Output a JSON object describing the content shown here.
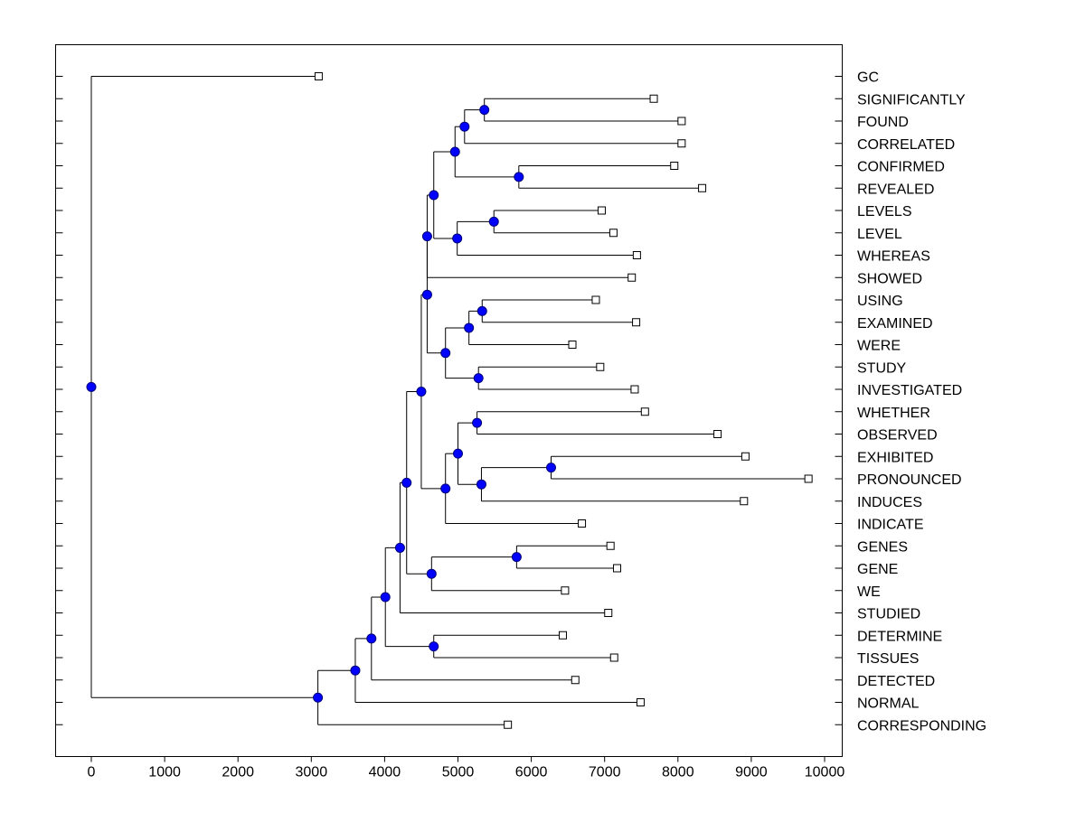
{
  "chart_data": {
    "type": "dendrogram",
    "title": "",
    "xlabel": "",
    "ylabel": "",
    "xlim": [
      -500,
      10200
    ],
    "xticks": [
      0,
      1000,
      2000,
      3000,
      4000,
      5000,
      6000,
      7000,
      8000,
      9000,
      10000
    ],
    "xtick_labels": [
      "0",
      "1000",
      "2000",
      "3000",
      "4000",
      "5000",
      "6000",
      "7000",
      "8000",
      "9000",
      "10000"
    ],
    "leaves": [
      {
        "label": "GC",
        "value": 3100
      },
      {
        "label": "SIGNIFICANTLY",
        "value": 7670
      },
      {
        "label": "FOUND",
        "value": 8050
      },
      {
        "label": "CORRELATED",
        "value": 8050
      },
      {
        "label": "CONFIRMED",
        "value": 7950
      },
      {
        "label": "REVEALED",
        "value": 8330
      },
      {
        "label": "LEVELS",
        "value": 6960
      },
      {
        "label": "LEVEL",
        "value": 7120
      },
      {
        "label": "WHEREAS",
        "value": 7440
      },
      {
        "label": "SHOWED",
        "value": 7370
      },
      {
        "label": "USING",
        "value": 6880
      },
      {
        "label": "EXAMINED",
        "value": 7430
      },
      {
        "label": "WERE",
        "value": 6560
      },
      {
        "label": "STUDY",
        "value": 6940
      },
      {
        "label": "INVESTIGATED",
        "value": 7410
      },
      {
        "label": "WHETHER",
        "value": 7550
      },
      {
        "label": "OBSERVED",
        "value": 8540
      },
      {
        "label": "EXHIBITED",
        "value": 8920
      },
      {
        "label": "PRONOUNCED",
        "value": 9780
      },
      {
        "label": "INDUCES",
        "value": 8900
      },
      {
        "label": "INDICATE",
        "value": 6690
      },
      {
        "label": "GENES",
        "value": 7080
      },
      {
        "label": "GENE",
        "value": 7170
      },
      {
        "label": "WE",
        "value": 6460
      },
      {
        "label": "STUDIED",
        "value": 7050
      },
      {
        "label": "DETERMINE",
        "value": 6430
      },
      {
        "label": "TISSUES",
        "value": 7130
      },
      {
        "label": "DETECTED",
        "value": 6600
      },
      {
        "label": "NORMAL",
        "value": 7490
      },
      {
        "label": "CORRESPONDING",
        "value": 5680
      }
    ],
    "nodes": [
      {
        "id": "A1",
        "value": 5360,
        "children": [
          "L:SIGNIFICANTLY",
          "L:FOUND"
        ]
      },
      {
        "id": "A2",
        "value": 5090,
        "children": [
          "N:A1",
          "L:CORRELATED"
        ]
      },
      {
        "id": "A3",
        "value": 5830,
        "children": [
          "L:CONFIRMED",
          "L:REVEALED"
        ]
      },
      {
        "id": "A4",
        "value": 4960,
        "children": [
          "N:A2",
          "N:A3"
        ]
      },
      {
        "id": "B1",
        "value": 5490,
        "children": [
          "L:LEVELS",
          "L:LEVEL"
        ]
      },
      {
        "id": "B2",
        "value": 4990,
        "children": [
          "N:B1",
          "L:WHEREAS"
        ]
      },
      {
        "id": "C",
        "value": 4670,
        "children": [
          "N:A4",
          "N:B2"
        ]
      },
      {
        "id": "D",
        "value": 4580,
        "children": [
          "N:C",
          "L:SHOWED"
        ]
      },
      {
        "id": "E1",
        "value": 5330,
        "children": [
          "L:USING",
          "L:EXAMINED"
        ]
      },
      {
        "id": "E2",
        "value": 5150,
        "children": [
          "N:E1",
          "L:WERE"
        ]
      },
      {
        "id": "E3",
        "value": 5280,
        "children": [
          "L:STUDY",
          "L:INVESTIGATED"
        ]
      },
      {
        "id": "E4",
        "value": 4830,
        "children": [
          "N:E2",
          "N:E3"
        ]
      },
      {
        "id": "F",
        "value": 4580,
        "children": [
          "N:D",
          "N:E4"
        ]
      },
      {
        "id": "G1",
        "value": 5260,
        "children": [
          "L:WHETHER",
          "L:OBSERVED"
        ]
      },
      {
        "id": "G2",
        "value": 6270,
        "children": [
          "L:EXHIBITED",
          "L:PRONOUNCED"
        ]
      },
      {
        "id": "G3",
        "value": 5320,
        "children": [
          "N:G2",
          "L:INDUCES"
        ]
      },
      {
        "id": "G4",
        "value": 5000,
        "children": [
          "N:G1",
          "N:G3"
        ]
      },
      {
        "id": "G5",
        "value": 4830,
        "children": [
          "N:G4",
          "L:INDICATE"
        ]
      },
      {
        "id": "H",
        "value": 4500,
        "children": [
          "N:F",
          "N:G5"
        ]
      },
      {
        "id": "I1",
        "value": 5800,
        "children": [
          "L:GENES",
          "L:GENE"
        ]
      },
      {
        "id": "I2",
        "value": 4640,
        "children": [
          "N:I1",
          "L:WE"
        ]
      },
      {
        "id": "J",
        "value": 4300,
        "children": [
          "N:H",
          "N:I2"
        ]
      },
      {
        "id": "K",
        "value": 4210,
        "children": [
          "N:J",
          "L:STUDIED"
        ]
      },
      {
        "id": "M1",
        "value": 4670,
        "children": [
          "L:DETERMINE",
          "L:TISSUES"
        ]
      },
      {
        "id": "M2",
        "value": 4010,
        "children": [
          "N:K",
          "N:M1"
        ]
      },
      {
        "id": "N1",
        "value": 3820,
        "children": [
          "N:M2",
          "L:DETECTED"
        ]
      },
      {
        "id": "N2",
        "value": 3600,
        "children": [
          "N:N1",
          "L:NORMAL"
        ]
      },
      {
        "id": "N3",
        "value": 3090,
        "children": [
          "N:N2",
          "L:CORRESPONDING"
        ]
      },
      {
        "id": "ROOT",
        "value": 0,
        "children": [
          "L:GC",
          "N:N3"
        ]
      }
    ],
    "colors": {
      "node_fill": "#0000ff",
      "leaf_fill": "#ffffff",
      "line": "#000000"
    }
  }
}
